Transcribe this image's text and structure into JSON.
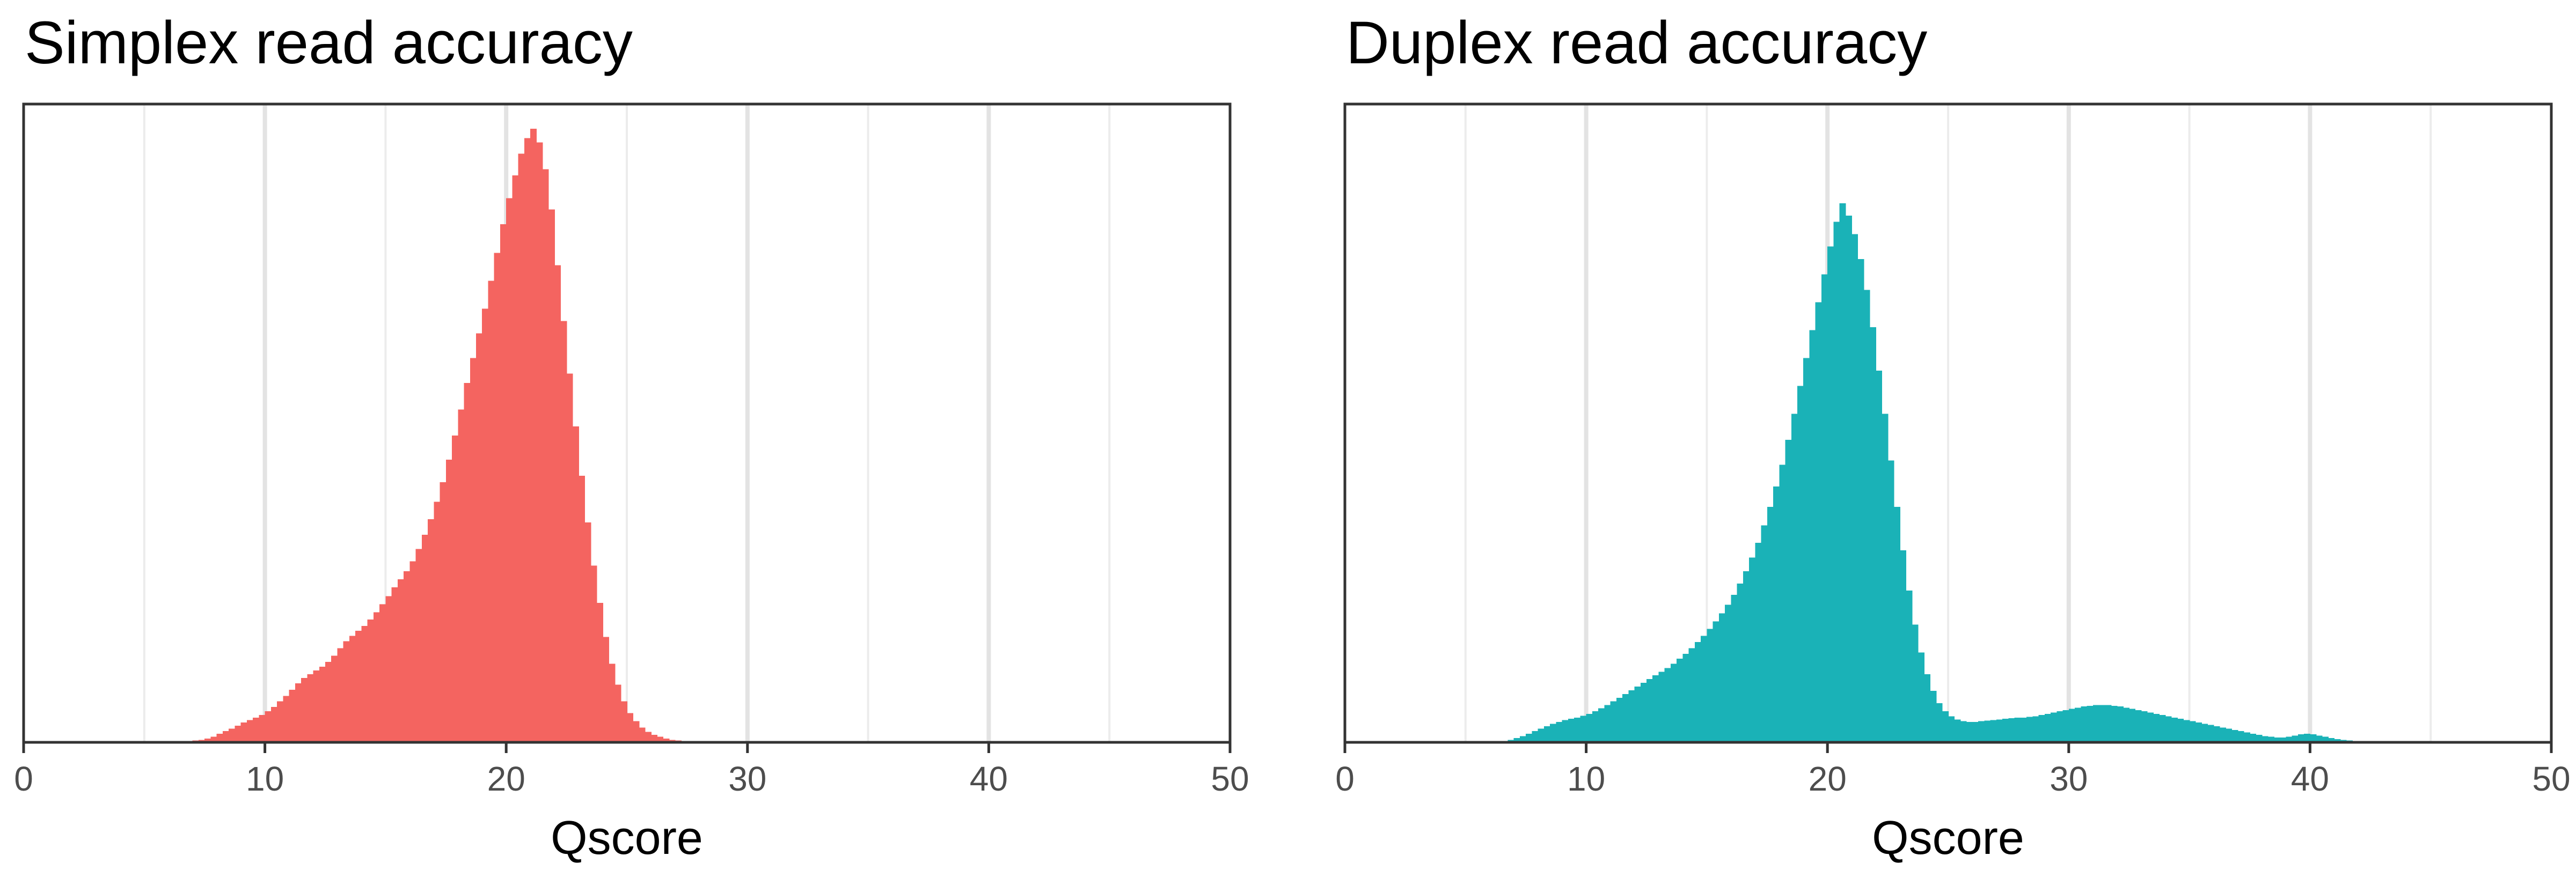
{
  "chart_data": [
    {
      "type": "histogram",
      "title": "Simplex read accuracy",
      "xlabel": "Qscore",
      "ylabel": "",
      "xlim": [
        0,
        50
      ],
      "ylim": [
        0,
        1.03
      ],
      "xticks": [
        0,
        10,
        20,
        30,
        40,
        50
      ],
      "xtick_labels": [
        "0",
        "10",
        "20",
        "30",
        "40",
        "50"
      ],
      "y_axis_labels_shown": false,
      "grid": "vertical major and minor",
      "color": "#F46460",
      "bin_width": 0.25,
      "bins": [
        [
          7.0,
          0.003
        ],
        [
          7.25,
          0.004
        ],
        [
          7.5,
          0.006
        ],
        [
          7.75,
          0.009
        ],
        [
          8.0,
          0.014
        ],
        [
          8.25,
          0.018
        ],
        [
          8.5,
          0.022
        ],
        [
          8.75,
          0.027
        ],
        [
          9.0,
          0.032
        ],
        [
          9.25,
          0.036
        ],
        [
          9.5,
          0.04
        ],
        [
          9.75,
          0.044
        ],
        [
          10.0,
          0.05
        ],
        [
          10.25,
          0.057
        ],
        [
          10.5,
          0.066
        ],
        [
          10.75,
          0.075
        ],
        [
          11.0,
          0.085
        ],
        [
          11.25,
          0.095
        ],
        [
          11.5,
          0.104
        ],
        [
          11.75,
          0.11
        ],
        [
          12.0,
          0.116
        ],
        [
          12.25,
          0.122
        ],
        [
          12.5,
          0.13
        ],
        [
          12.75,
          0.14
        ],
        [
          13.0,
          0.152
        ],
        [
          13.25,
          0.163
        ],
        [
          13.5,
          0.172
        ],
        [
          13.75,
          0.18
        ],
        [
          14.0,
          0.188
        ],
        [
          14.25,
          0.198
        ],
        [
          14.5,
          0.21
        ],
        [
          14.75,
          0.223
        ],
        [
          15.0,
          0.236
        ],
        [
          15.25,
          0.25
        ],
        [
          15.5,
          0.263
        ],
        [
          15.75,
          0.276
        ],
        [
          16.0,
          0.292
        ],
        [
          16.25,
          0.312
        ],
        [
          16.5,
          0.335
        ],
        [
          16.75,
          0.36
        ],
        [
          17.0,
          0.388
        ],
        [
          17.25,
          0.42
        ],
        [
          17.5,
          0.456
        ],
        [
          17.75,
          0.495
        ],
        [
          18.0,
          0.537
        ],
        [
          18.25,
          0.58
        ],
        [
          18.5,
          0.62
        ],
        [
          18.75,
          0.66
        ],
        [
          19.0,
          0.7
        ],
        [
          19.25,
          0.745
        ],
        [
          19.5,
          0.79
        ],
        [
          19.75,
          0.836
        ],
        [
          20.0,
          0.878
        ],
        [
          20.25,
          0.915
        ],
        [
          20.5,
          0.95
        ],
        [
          20.75,
          0.975
        ],
        [
          21.0,
          0.99
        ],
        [
          21.25,
          0.968
        ],
        [
          21.5,
          0.925
        ],
        [
          21.75,
          0.86
        ],
        [
          22.0,
          0.77
        ],
        [
          22.25,
          0.68
        ],
        [
          22.5,
          0.595
        ],
        [
          22.75,
          0.51
        ],
        [
          23.0,
          0.43
        ],
        [
          23.25,
          0.355
        ],
        [
          23.5,
          0.285
        ],
        [
          23.75,
          0.225
        ],
        [
          24.0,
          0.17
        ],
        [
          24.25,
          0.127
        ],
        [
          24.5,
          0.093
        ],
        [
          24.75,
          0.066
        ],
        [
          25.0,
          0.047
        ],
        [
          25.25,
          0.034
        ],
        [
          25.5,
          0.024
        ],
        [
          25.75,
          0.017
        ],
        [
          26.0,
          0.012
        ],
        [
          26.25,
          0.009
        ],
        [
          26.5,
          0.006
        ],
        [
          26.75,
          0.004
        ],
        [
          27.0,
          0.003
        ],
        [
          27.25,
          0.002
        ],
        [
          27.5,
          0.001
        ]
      ]
    },
    {
      "type": "histogram",
      "title": "Duplex read accuracy",
      "xlabel": "Qscore",
      "ylabel": "",
      "xlim": [
        0,
        50
      ],
      "ylim": [
        0,
        1.03
      ],
      "xticks": [
        0,
        10,
        20,
        30,
        40,
        50
      ],
      "xtick_labels": [
        "0",
        "10",
        "20",
        "30",
        "40",
        "50"
      ],
      "y_axis_labels_shown": false,
      "grid": "vertical major and minor",
      "color": "#1AB2B7",
      "bin_width": 0.25,
      "bins": [
        [
          6.5,
          0.002
        ],
        [
          6.75,
          0.004
        ],
        [
          7.0,
          0.007
        ],
        [
          7.25,
          0.01
        ],
        [
          7.5,
          0.014
        ],
        [
          7.75,
          0.018
        ],
        [
          8.0,
          0.022
        ],
        [
          8.25,
          0.026
        ],
        [
          8.5,
          0.03
        ],
        [
          8.75,
          0.033
        ],
        [
          9.0,
          0.036
        ],
        [
          9.25,
          0.038
        ],
        [
          9.5,
          0.04
        ],
        [
          9.75,
          0.043
        ],
        [
          10.0,
          0.046
        ],
        [
          10.25,
          0.05
        ],
        [
          10.5,
          0.055
        ],
        [
          10.75,
          0.06
        ],
        [
          11.0,
          0.066
        ],
        [
          11.25,
          0.072
        ],
        [
          11.5,
          0.078
        ],
        [
          11.75,
          0.084
        ],
        [
          12.0,
          0.09
        ],
        [
          12.25,
          0.096
        ],
        [
          12.5,
          0.102
        ],
        [
          12.75,
          0.108
        ],
        [
          13.0,
          0.114
        ],
        [
          13.25,
          0.12
        ],
        [
          13.5,
          0.127
        ],
        [
          13.75,
          0.135
        ],
        [
          14.0,
          0.143
        ],
        [
          14.25,
          0.152
        ],
        [
          14.5,
          0.162
        ],
        [
          14.75,
          0.172
        ],
        [
          15.0,
          0.183
        ],
        [
          15.25,
          0.195
        ],
        [
          15.5,
          0.208
        ],
        [
          15.75,
          0.222
        ],
        [
          16.0,
          0.238
        ],
        [
          16.25,
          0.256
        ],
        [
          16.5,
          0.276
        ],
        [
          16.75,
          0.298
        ],
        [
          17.0,
          0.322
        ],
        [
          17.25,
          0.35
        ],
        [
          17.5,
          0.38
        ],
        [
          17.75,
          0.413
        ],
        [
          18.0,
          0.448
        ],
        [
          18.25,
          0.488
        ],
        [
          18.5,
          0.53
        ],
        [
          18.75,
          0.575
        ],
        [
          19.0,
          0.62
        ],
        [
          19.25,
          0.665
        ],
        [
          19.5,
          0.71
        ],
        [
          19.75,
          0.755
        ],
        [
          20.0,
          0.8
        ],
        [
          20.25,
          0.84
        ],
        [
          20.5,
          0.87
        ],
        [
          20.75,
          0.85
        ],
        [
          21.0,
          0.82
        ],
        [
          21.25,
          0.78
        ],
        [
          21.5,
          0.73
        ],
        [
          21.75,
          0.67
        ],
        [
          22.0,
          0.6
        ],
        [
          22.25,
          0.53
        ],
        [
          22.5,
          0.455
        ],
        [
          22.75,
          0.38
        ],
        [
          23.0,
          0.31
        ],
        [
          23.25,
          0.245
        ],
        [
          23.5,
          0.19
        ],
        [
          23.75,
          0.145
        ],
        [
          24.0,
          0.11
        ],
        [
          24.25,
          0.083
        ],
        [
          24.5,
          0.063
        ],
        [
          24.75,
          0.05
        ],
        [
          25.0,
          0.042
        ],
        [
          25.25,
          0.037
        ],
        [
          25.5,
          0.034
        ],
        [
          25.75,
          0.033
        ],
        [
          26.0,
          0.033
        ],
        [
          26.25,
          0.034
        ],
        [
          26.5,
          0.035
        ],
        [
          26.75,
          0.036
        ],
        [
          27.0,
          0.037
        ],
        [
          27.25,
          0.038
        ],
        [
          27.5,
          0.039
        ],
        [
          27.75,
          0.04
        ],
        [
          28.0,
          0.04
        ],
        [
          28.25,
          0.041
        ],
        [
          28.5,
          0.042
        ],
        [
          28.75,
          0.044
        ],
        [
          29.0,
          0.046
        ],
        [
          29.25,
          0.048
        ],
        [
          29.5,
          0.05
        ],
        [
          29.75,
          0.052
        ],
        [
          30.0,
          0.054
        ],
        [
          30.25,
          0.056
        ],
        [
          30.5,
          0.058
        ],
        [
          30.75,
          0.059
        ],
        [
          31.0,
          0.06
        ],
        [
          31.25,
          0.06
        ],
        [
          31.5,
          0.06
        ],
        [
          31.75,
          0.059
        ],
        [
          32.0,
          0.058
        ],
        [
          32.25,
          0.056
        ],
        [
          32.5,
          0.054
        ],
        [
          32.75,
          0.052
        ],
        [
          33.0,
          0.05
        ],
        [
          33.25,
          0.048
        ],
        [
          33.5,
          0.046
        ],
        [
          33.75,
          0.044
        ],
        [
          34.0,
          0.042
        ],
        [
          34.25,
          0.04
        ],
        [
          34.5,
          0.038
        ],
        [
          34.75,
          0.036
        ],
        [
          35.0,
          0.034
        ],
        [
          35.25,
          0.032
        ],
        [
          35.5,
          0.03
        ],
        [
          35.75,
          0.028
        ],
        [
          36.0,
          0.026
        ],
        [
          36.25,
          0.024
        ],
        [
          36.5,
          0.022
        ],
        [
          36.75,
          0.02
        ],
        [
          37.0,
          0.018
        ],
        [
          37.25,
          0.016
        ],
        [
          37.5,
          0.014
        ],
        [
          37.75,
          0.012
        ],
        [
          38.0,
          0.01
        ],
        [
          38.25,
          0.009
        ],
        [
          38.5,
          0.008
        ],
        [
          38.75,
          0.008
        ],
        [
          39.0,
          0.009
        ],
        [
          39.25,
          0.011
        ],
        [
          39.5,
          0.013
        ],
        [
          39.75,
          0.014
        ],
        [
          40.0,
          0.013
        ],
        [
          40.25,
          0.011
        ],
        [
          40.5,
          0.009
        ],
        [
          40.75,
          0.007
        ],
        [
          41.0,
          0.005
        ],
        [
          41.25,
          0.004
        ],
        [
          41.5,
          0.003
        ],
        [
          41.75,
          0.002
        ],
        [
          42.0,
          0.001
        ]
      ]
    }
  ]
}
